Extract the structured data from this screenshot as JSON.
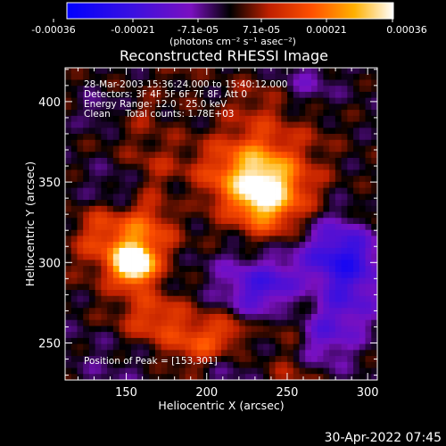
{
  "colorbar": {
    "ticks": [
      "-0.00036",
      "-0.00021",
      "-7.1e-05",
      "7.1e-05",
      "0.00021",
      "0.00036"
    ],
    "unit_label": "(photons cm⁻² s⁻¹ asec⁻²)",
    "range": [
      -0.00036,
      0.00036
    ]
  },
  "chart_data": {
    "type": "heatmap",
    "title": "Reconstructed RHESSI Image",
    "xlabel": "Heliocentric X (arcsec)",
    "ylabel": "Heliocentric Y (arcsec)",
    "xlim": [
      112,
      306
    ],
    "ylim": [
      227,
      421
    ],
    "xticks": [
      "150",
      "200",
      "250",
      "300"
    ],
    "yticks": [
      "250",
      "300",
      "350",
      "400"
    ],
    "xtick_values": [
      150,
      200,
      250,
      300
    ],
    "ytick_values": [
      250,
      300,
      350,
      400
    ],
    "info_lines": [
      "28-Mar-2003 15:36:24.000 to 15:40:12.000",
      "Detectors: 3F 4F 5F 6F 7F 8F, Att 0",
      "Energy Range: 12.0 - 25.0 keV",
      "Clean     Total counts: 1.78E+03"
    ],
    "peak_label": "Position of Peak = [153,301]",
    "peak": [
      153,
      301
    ]
  },
  "footer": {
    "date": "30-Apr-2022 07:45"
  }
}
